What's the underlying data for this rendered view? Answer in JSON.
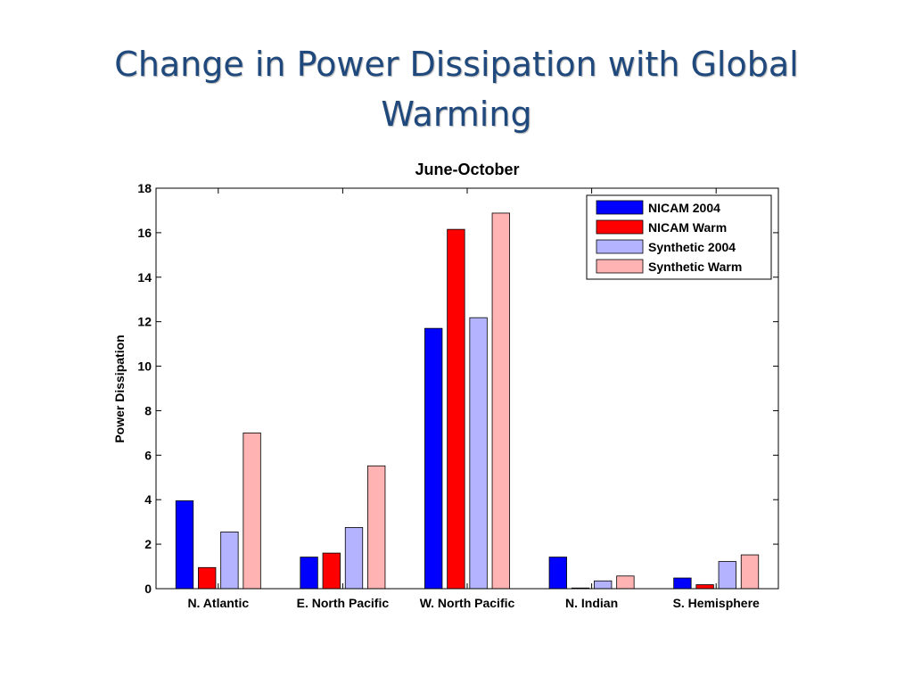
{
  "slide": {
    "title": "Change in Power Dissipation with Global Warming"
  },
  "chart_data": {
    "type": "bar",
    "title": "June-October",
    "xlabel": "",
    "ylabel": "Power Dissipation",
    "ylim": [
      0,
      18
    ],
    "yticks": [
      0,
      2,
      4,
      6,
      8,
      10,
      12,
      14,
      16,
      18
    ],
    "grid": false,
    "legend_position": "top-right",
    "categories": [
      "N. Atlantic",
      "E. North Pacific",
      "W. North Pacific",
      "N. Indian",
      "S. Hemisphere"
    ],
    "series": [
      {
        "name": "NICAM 2004",
        "color": "#0000ff",
        "values": [
          3.95,
          1.42,
          11.7,
          1.42,
          0.48
        ]
      },
      {
        "name": "NICAM Warm",
        "color": "#ff0000",
        "values": [
          0.95,
          1.6,
          16.15,
          0.03,
          0.18
        ]
      },
      {
        "name": "Synthetic 2004",
        "color": "#b3b3ff",
        "values": [
          2.55,
          2.75,
          12.18,
          0.35,
          1.22
        ]
      },
      {
        "name": "Synthetic Warm",
        "color": "#ffb3b3",
        "values": [
          7.0,
          5.52,
          16.88,
          0.57,
          1.52
        ]
      }
    ]
  }
}
